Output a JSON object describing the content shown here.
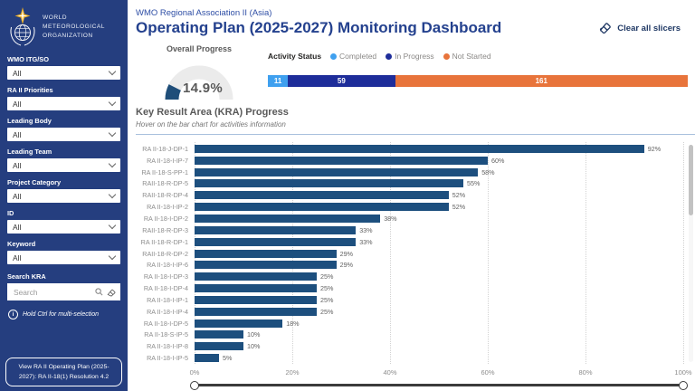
{
  "sidebar": {
    "org_name_lines": [
      "WORLD",
      "METEOROLOGICAL",
      "ORGANIZATION"
    ],
    "filters": [
      {
        "label": "WMO ITG/SO",
        "value": "All"
      },
      {
        "label": "RA II Priorities",
        "value": "All"
      },
      {
        "label": "Leading Body",
        "value": "All"
      },
      {
        "label": "Leading Team",
        "value": "All"
      },
      {
        "label": "Project Category",
        "value": "All"
      },
      {
        "label": "ID",
        "value": "All"
      },
      {
        "label": "Keyword",
        "value": "All"
      }
    ],
    "search_kra": {
      "label": "Search KRA",
      "placeholder": "Search"
    },
    "hint": "Hold Ctrl for multi-selection",
    "link_button": "View RA II Operating Plan (2025-2027): RA II-18(1) Resolution 4.2"
  },
  "header": {
    "region": "WMO Regional Association II (Asia)",
    "title": "Operating Plan (2025-2027) Monitoring Dashboard",
    "clear_slicers": "Clear all slicers"
  },
  "overall_progress": {
    "title": "Overall Progress",
    "percent": 14.9,
    "display": "14.9%"
  },
  "activity_status": {
    "title": "Activity Status",
    "segments": [
      {
        "label": "Completed",
        "value": 11,
        "color": "#3FA0EF"
      },
      {
        "label": "In Progress",
        "value": 59,
        "color": "#1E2D9A"
      },
      {
        "label": "Not Started",
        "value": 161,
        "color": "#E8743B"
      }
    ]
  },
  "chart_data": {
    "type": "bar",
    "orientation": "horizontal",
    "title": "Key Result Area (KRA) Progress",
    "subtitle": "Hover on the bar chart for activities information",
    "categories": [
      "RA II-18-J-DP-1",
      "RA II-18-I-IP-7",
      "RA II-18-S-PP-1",
      "RAII-18-R-DP-5",
      "RAII-18-R-DP-4",
      "RA II-18-I-IP-2",
      "RA II-18-I-DP-2",
      "RAII-18-R-DP-3",
      "RA II-18-R-DP-1",
      "RAII-18-R-DP-2",
      "RA II-18-I-IP-6",
      "RA II-18-I-DP-3",
      "RA II-18-I-DP-4",
      "RA II-18-I-IP-1",
      "RA II-18-I-IP-4",
      "RA II-18-I-DP-5",
      "RA II-18-S-IP-5",
      "RA II-18-I-IP-8",
      "RA II-18-I-IP-5"
    ],
    "values": [
      92,
      60,
      58,
      55,
      52,
      52,
      38,
      33,
      33,
      29,
      29,
      25,
      25,
      25,
      25,
      18,
      10,
      10,
      5
    ],
    "unit": "%",
    "xlim": [
      0,
      100
    ],
    "x_ticks": [
      "0%",
      "20%",
      "40%",
      "60%",
      "80%",
      "100%"
    ],
    "bar_color": "#1D4F7E",
    "grid": "vertical-dotted",
    "legend_position": "none"
  },
  "colors": {
    "sidebar_bg": "#253E7F",
    "title_blue": "#24418E",
    "gauge_fill": "#1F4E79",
    "gauge_track": "#EBEBEB",
    "bar_blue": "#1D4F7E"
  }
}
